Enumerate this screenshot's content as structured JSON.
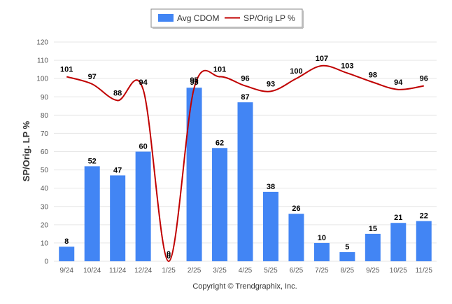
{
  "chart_data": {
    "type": "bar",
    "title": "",
    "xlabel": "",
    "ylabel": "SP/Orig. LP %",
    "ylim": [
      0,
      120
    ],
    "yticks": [
      0,
      10,
      20,
      30,
      40,
      50,
      60,
      70,
      80,
      90,
      100,
      110,
      120
    ],
    "grid": true,
    "legend_position": "top-center",
    "categories": [
      "9/24",
      "10/24",
      "11/24",
      "12/24",
      "1/25",
      "2/25",
      "3/25",
      "4/25",
      "5/25",
      "6/25",
      "7/25",
      "8/25",
      "9/25",
      "10/25",
      "11/25"
    ],
    "series": [
      {
        "name": "Avg CDOM",
        "type": "bar",
        "color": "#4285f4",
        "values": [
          8,
          52,
          47,
          60,
          0,
          95,
          62,
          87,
          38,
          26,
          10,
          5,
          15,
          21,
          22
        ]
      },
      {
        "name": "SP/Orig LP %",
        "type": "line",
        "color": "#c00000",
        "values": [
          101,
          97,
          88,
          94,
          0,
          95,
          101,
          96,
          93,
          100,
          107,
          103,
          98,
          94,
          96
        ]
      }
    ],
    "footer": "Copyright © Trendgraphix, Inc."
  }
}
